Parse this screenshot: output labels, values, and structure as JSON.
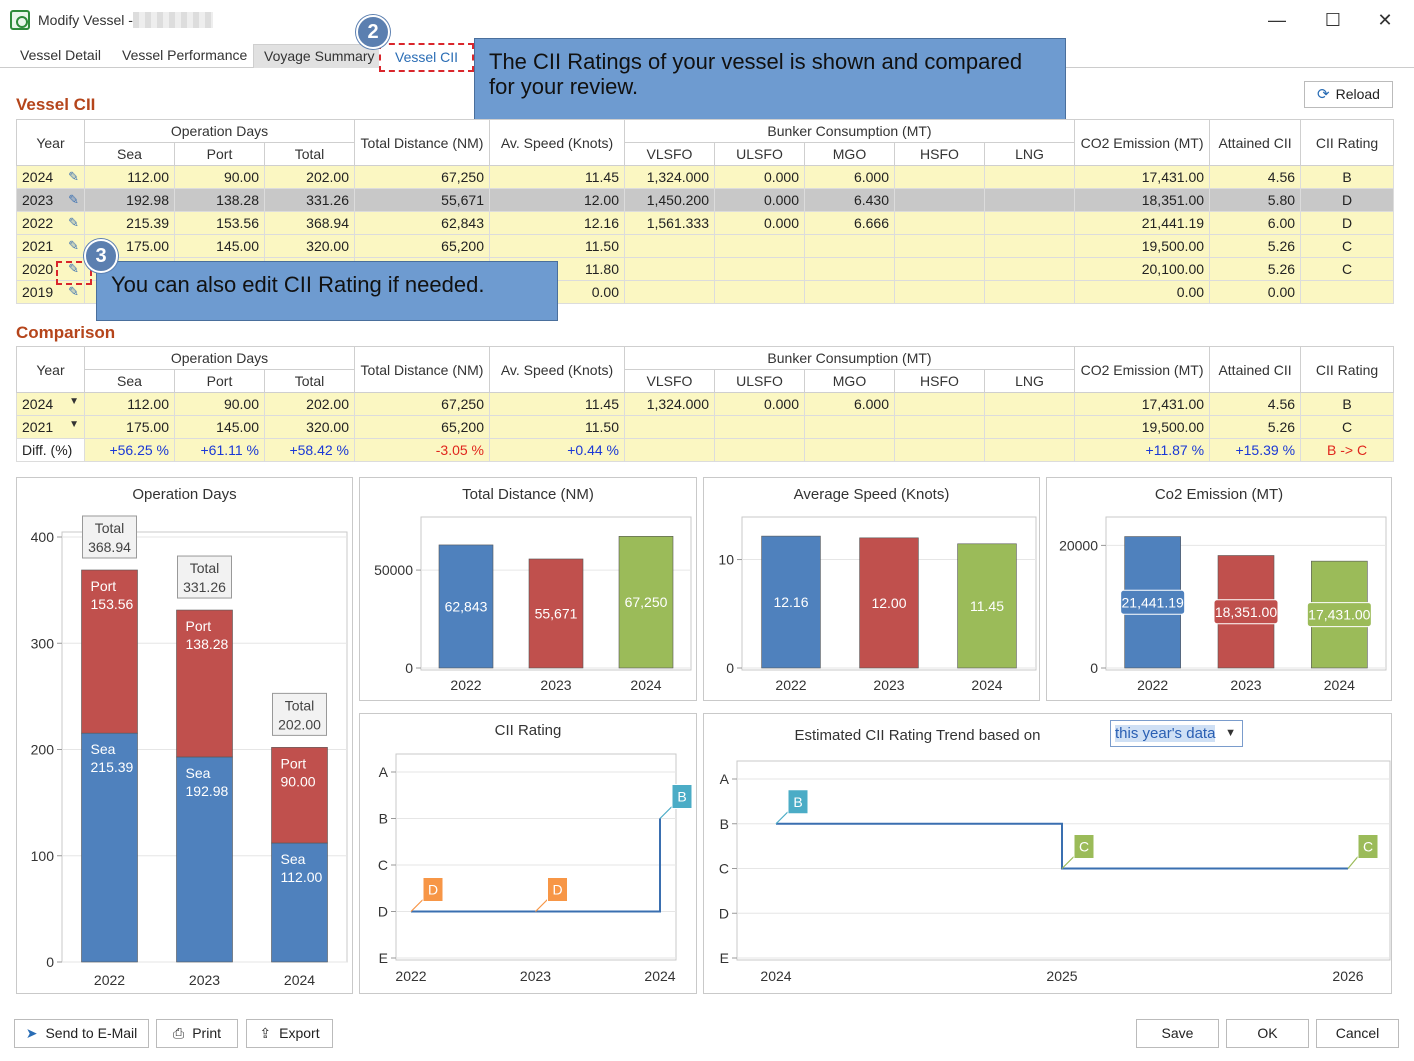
{
  "window": {
    "title": "Modify Vessel -",
    "minimize": "—",
    "maximize": "☐",
    "close": "✕"
  },
  "tabs": [
    {
      "label": "Vessel Detail"
    },
    {
      "label": "Vessel Performance"
    },
    {
      "label": "Voyage Summary"
    },
    {
      "label": "Vessel CII"
    }
  ],
  "callouts": {
    "step2": {
      "number": "2",
      "text": "The CII Ratings of your vessel is shown and compared for your review."
    },
    "step3": {
      "number": "3",
      "text": "You can also edit CII Rating if needed."
    }
  },
  "vessel_cii": {
    "title": "Vessel CII",
    "reload_label": "Reload",
    "headers": {
      "year": "Year",
      "operation_days": "Operation Days",
      "sea": "Sea",
      "port": "Port",
      "total": "Total",
      "total_distance": "Total Distance (NM)",
      "av_speed": "Av. Speed (Knots)",
      "bunker": "Bunker Consumption (MT)",
      "vlsfo": "VLSFO",
      "ulsfo": "ULSFO",
      "mgo": "MGO",
      "hsfo": "HSFO",
      "lng": "LNG",
      "co2": "CO2 Emission (MT)",
      "attained": "Attained CII",
      "rating": "CII Rating"
    },
    "rows": [
      {
        "year": "2024",
        "sea": "112.00",
        "port": "90.00",
        "total": "202.00",
        "distance": "67,250",
        "speed": "11.45",
        "vlsfo": "1,324.000",
        "ulsfo": "0.000",
        "mgo": "6.000",
        "hsfo": "",
        "lng": "",
        "co2": "17,431.00",
        "attained": "4.56",
        "rating": "B"
      },
      {
        "year": "2023",
        "sea": "192.98",
        "port": "138.28",
        "total": "331.26",
        "distance": "55,671",
        "speed": "12.00",
        "vlsfo": "1,450.200",
        "ulsfo": "0.000",
        "mgo": "6.430",
        "hsfo": "",
        "lng": "",
        "co2": "18,351.00",
        "attained": "5.80",
        "rating": "D"
      },
      {
        "year": "2022",
        "sea": "215.39",
        "port": "153.56",
        "total": "368.94",
        "distance": "62,843",
        "speed": "12.16",
        "vlsfo": "1,561.333",
        "ulsfo": "0.000",
        "mgo": "6.666",
        "hsfo": "",
        "lng": "",
        "co2": "21,441.19",
        "attained": "6.00",
        "rating": "D"
      },
      {
        "year": "2021",
        "sea": "175.00",
        "port": "145.00",
        "total": "320.00",
        "distance": "65,200",
        "speed": "11.50",
        "vlsfo": "",
        "ulsfo": "",
        "mgo": "",
        "hsfo": "",
        "lng": "",
        "co2": "19,500.00",
        "attained": "5.26",
        "rating": "C"
      },
      {
        "year": "2020",
        "sea": "",
        "port": "",
        "total": "",
        "distance": "",
        "speed": "11.80",
        "vlsfo": "",
        "ulsfo": "",
        "mgo": "",
        "hsfo": "",
        "lng": "",
        "co2": "20,100.00",
        "attained": "5.26",
        "rating": "C"
      },
      {
        "year": "2019",
        "sea": "",
        "port": "",
        "total": "",
        "distance": "",
        "speed": "0.00",
        "vlsfo": "",
        "ulsfo": "",
        "mgo": "",
        "hsfo": "",
        "lng": "",
        "co2": "0.00",
        "attained": "0.00",
        "rating": ""
      }
    ]
  },
  "comparison": {
    "title": "Comparison",
    "rows": [
      {
        "year": "2024",
        "sea": "112.00",
        "port": "90.00",
        "total": "202.00",
        "distance": "67,250",
        "speed": "11.45",
        "vlsfo": "1,324.000",
        "ulsfo": "0.000",
        "mgo": "6.000",
        "hsfo": "",
        "lng": "",
        "co2": "17,431.00",
        "attained": "4.56",
        "rating": "B"
      },
      {
        "year": "2021",
        "sea": "175.00",
        "port": "145.00",
        "total": "320.00",
        "distance": "65,200",
        "speed": "11.50",
        "vlsfo": "",
        "ulsfo": "",
        "mgo": "",
        "hsfo": "",
        "lng": "",
        "co2": "19,500.00",
        "attained": "5.26",
        "rating": "C"
      }
    ],
    "diff": {
      "label": "Diff. (%)",
      "sea": "+56.25 %",
      "port": "+61.11 %",
      "total": "+58.42 %",
      "distance": "-3.05 %",
      "speed": "+0.44 %",
      "co2": "+11.87 %",
      "attained": "+15.39 %",
      "rating": "B -> C"
    }
  },
  "chart_data": [
    {
      "type": "bar",
      "stacked": true,
      "title": "Operation Days",
      "categories": [
        "2022",
        "2023",
        "2024"
      ],
      "series": [
        {
          "name": "Sea",
          "values": [
            215.39,
            192.98,
            112.0
          ],
          "labels": [
            "215.39",
            "192.98",
            "112.00"
          ],
          "color": "#4f81bd"
        },
        {
          "name": "Port",
          "values": [
            153.56,
            138.28,
            90.0
          ],
          "labels": [
            "153.56",
            "138.28",
            "90.00"
          ],
          "color": "#c0504d"
        }
      ],
      "totals": {
        "label": "Total",
        "values": [
          "368.94",
          "331.26",
          "202.00"
        ]
      },
      "ylim": [
        0,
        400
      ],
      "yticks": [
        "0",
        "100",
        "200",
        "300",
        "400"
      ]
    },
    {
      "type": "bar",
      "title": "Total Distance (NM)",
      "categories": [
        "2022",
        "2023",
        "2024"
      ],
      "values": [
        62843,
        55671,
        67250
      ],
      "labels": [
        "62,843",
        "55,671",
        "67,250"
      ],
      "colors": [
        "#4f81bd",
        "#c0504d",
        "#9bbb59"
      ],
      "ylim": [
        0,
        72000
      ],
      "yticks": [
        {
          "v": 0,
          "t": "0"
        },
        {
          "v": 50000,
          "t": "50000"
        }
      ]
    },
    {
      "type": "bar",
      "title": "Average Speed (Knots)",
      "categories": [
        "2022",
        "2023",
        "2024"
      ],
      "values": [
        12.16,
        12.0,
        11.45
      ],
      "labels": [
        "12.16",
        "12.00",
        "11.45"
      ],
      "colors": [
        "#4f81bd",
        "#c0504d",
        "#9bbb59"
      ],
      "ylim": [
        0,
        13
      ],
      "yticks": [
        {
          "v": 0,
          "t": "0"
        },
        {
          "v": 10,
          "t": "10"
        }
      ]
    },
    {
      "type": "bar",
      "title": "Co2 Emission (MT)",
      "categories": [
        "2022",
        "2023",
        "2024"
      ],
      "values": [
        21441.19,
        18351.0,
        17431.0
      ],
      "labels": [
        "21,441.19",
        "18,351.00",
        "17,431.00"
      ],
      "colors": [
        "#4f81bd",
        "#c0504d",
        "#9bbb59"
      ],
      "ylim": [
        0,
        23000
      ],
      "yticks": [
        {
          "v": 0,
          "t": "0"
        },
        {
          "v": 20000,
          "t": "20000"
        }
      ]
    },
    {
      "type": "line",
      "title": "CII Rating",
      "x": [
        "2022",
        "2023",
        "2024"
      ],
      "ratings": [
        "D",
        "D",
        "B"
      ],
      "yticks": [
        "A",
        "B",
        "C",
        "D",
        "E"
      ],
      "marker_colors": [
        "#f79646",
        "#f79646",
        "#4bacc6"
      ]
    },
    {
      "type": "line",
      "title": "Estimated CII Rating Trend based on",
      "dropdown_value": "this year's data",
      "x": [
        "2024",
        "2025",
        "2026"
      ],
      "ratings": [
        "B",
        "C",
        "C"
      ],
      "yticks": [
        "A",
        "B",
        "C",
        "D",
        "E"
      ],
      "marker_colors": [
        "#4bacc6",
        "#9bbb59",
        "#9bbb59"
      ]
    }
  ],
  "footer": {
    "send_email": "Send to E-Mail",
    "print": "Print",
    "export": "Export",
    "save": "Save",
    "ok": "OK",
    "cancel": "Cancel"
  }
}
